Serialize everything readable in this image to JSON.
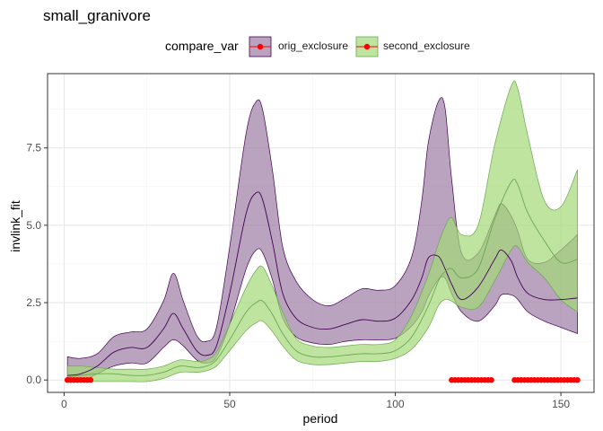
{
  "chart_data": {
    "type": "area",
    "title": "small_granivore",
    "xlabel": "period",
    "ylabel": "invlink_fit",
    "xlim": [
      -5,
      160
    ],
    "ylim": [
      -0.4,
      9.9
    ],
    "xticks": [
      0,
      50,
      100,
      150
    ],
    "yticks": [
      0.0,
      2.5,
      5.0,
      7.5
    ],
    "xtick_labels": [
      "0",
      "50",
      "100",
      "150"
    ],
    "ytick_labels": [
      "0.0",
      "2.5",
      "5.0",
      "7.5"
    ],
    "grid": true,
    "legend": {
      "title": "compare_var",
      "position": "top",
      "entries": [
        "orig_exclosure",
        "second_exclosure"
      ]
    },
    "series": [
      {
        "name": "orig_exclosure",
        "color": "#440154",
        "fill": "#9b7ca3",
        "x": [
          1,
          5,
          10,
          15,
          20,
          25,
          30,
          33,
          36,
          40,
          43,
          46,
          50,
          55,
          58,
          60,
          63,
          66,
          70,
          75,
          80,
          85,
          90,
          95,
          100,
          105,
          108,
          110,
          113,
          115,
          117,
          120,
          125,
          130,
          132,
          135,
          137,
          140,
          145,
          150,
          155
        ],
        "fit": [
          0.15,
          0.2,
          0.45,
          0.9,
          1.05,
          1.05,
          1.65,
          2.15,
          1.65,
          0.95,
          0.8,
          1.1,
          2.8,
          5.4,
          6.05,
          5.8,
          4.4,
          2.8,
          2.0,
          1.7,
          1.65,
          1.8,
          1.95,
          1.9,
          2.0,
          2.6,
          3.3,
          3.95,
          4.0,
          3.6,
          3.1,
          2.6,
          3.0,
          3.9,
          4.2,
          3.85,
          3.3,
          2.8,
          2.6,
          2.6,
          2.65
        ],
        "lower": [
          -0.05,
          -0.05,
          0.2,
          0.45,
          0.55,
          0.55,
          1.05,
          1.3,
          1.1,
          0.65,
          0.55,
          0.75,
          1.8,
          3.6,
          4.2,
          4.1,
          3.2,
          2.0,
          1.4,
          1.2,
          1.15,
          1.25,
          1.3,
          1.3,
          1.35,
          1.75,
          2.2,
          2.7,
          3.25,
          3.3,
          2.8,
          2.2,
          1.9,
          2.4,
          2.75,
          2.75,
          2.6,
          2.2,
          1.9,
          1.7,
          1.5
        ],
        "upper": [
          0.75,
          0.7,
          0.85,
          1.4,
          1.55,
          1.65,
          2.55,
          3.45,
          2.55,
          1.45,
          1.25,
          1.7,
          4.3,
          8.0,
          9.0,
          8.7,
          6.7,
          4.3,
          3.2,
          2.6,
          2.4,
          2.65,
          2.95,
          2.9,
          3.05,
          4.0,
          5.8,
          7.7,
          9.0,
          8.8,
          6.5,
          4.1,
          4.1,
          5.3,
          5.7,
          5.3,
          4.8,
          3.9,
          3.8,
          4.2,
          4.7
        ]
      },
      {
        "name": "second_exclosure",
        "color": "#6aa84f",
        "fill": "#a3d977",
        "x": [
          1,
          5,
          10,
          15,
          20,
          25,
          30,
          35,
          40,
          43,
          46,
          50,
          55,
          58,
          60,
          63,
          66,
          70,
          75,
          80,
          85,
          90,
          95,
          100,
          105,
          110,
          113,
          115,
          117,
          120,
          125,
          130,
          135,
          137,
          140,
          145,
          150,
          155
        ],
        "fit": [
          0.1,
          0.15,
          0.2,
          0.2,
          0.15,
          0.15,
          0.25,
          0.45,
          0.4,
          0.45,
          0.65,
          1.3,
          2.2,
          2.5,
          2.55,
          2.1,
          1.5,
          0.95,
          0.75,
          0.75,
          0.8,
          0.85,
          0.85,
          0.95,
          1.4,
          2.4,
          3.2,
          3.5,
          3.6,
          3.3,
          3.6,
          5.2,
          6.4,
          6.3,
          5.4,
          4.5,
          3.8,
          3.9
        ],
        "lower": [
          -0.05,
          -0.05,
          -0.05,
          -0.05,
          -0.05,
          -0.05,
          0.05,
          0.25,
          0.25,
          0.3,
          0.45,
          0.95,
          1.6,
          1.85,
          1.9,
          1.55,
          1.1,
          0.65,
          0.5,
          0.5,
          0.55,
          0.6,
          0.6,
          0.7,
          1.0,
          1.7,
          2.4,
          2.6,
          2.55,
          2.35,
          2.35,
          3.2,
          4.2,
          4.3,
          3.8,
          3.3,
          2.6,
          2.2
        ],
        "upper": [
          0.45,
          0.45,
          0.4,
          0.35,
          0.35,
          0.35,
          0.45,
          0.65,
          0.6,
          0.65,
          0.9,
          1.8,
          3.0,
          3.55,
          3.65,
          3.0,
          2.2,
          1.35,
          1.1,
          1.05,
          1.1,
          1.15,
          1.15,
          1.3,
          2.1,
          3.4,
          4.4,
          4.95,
          5.25,
          4.7,
          5.0,
          7.6,
          9.5,
          9.4,
          7.9,
          5.8,
          5.6,
          6.8
        ]
      }
    ],
    "markers": {
      "color": "#ff0000",
      "y": 0.0,
      "segments": [
        [
          1,
          8
        ],
        [
          117,
          129
        ],
        [
          136,
          155
        ]
      ]
    }
  }
}
